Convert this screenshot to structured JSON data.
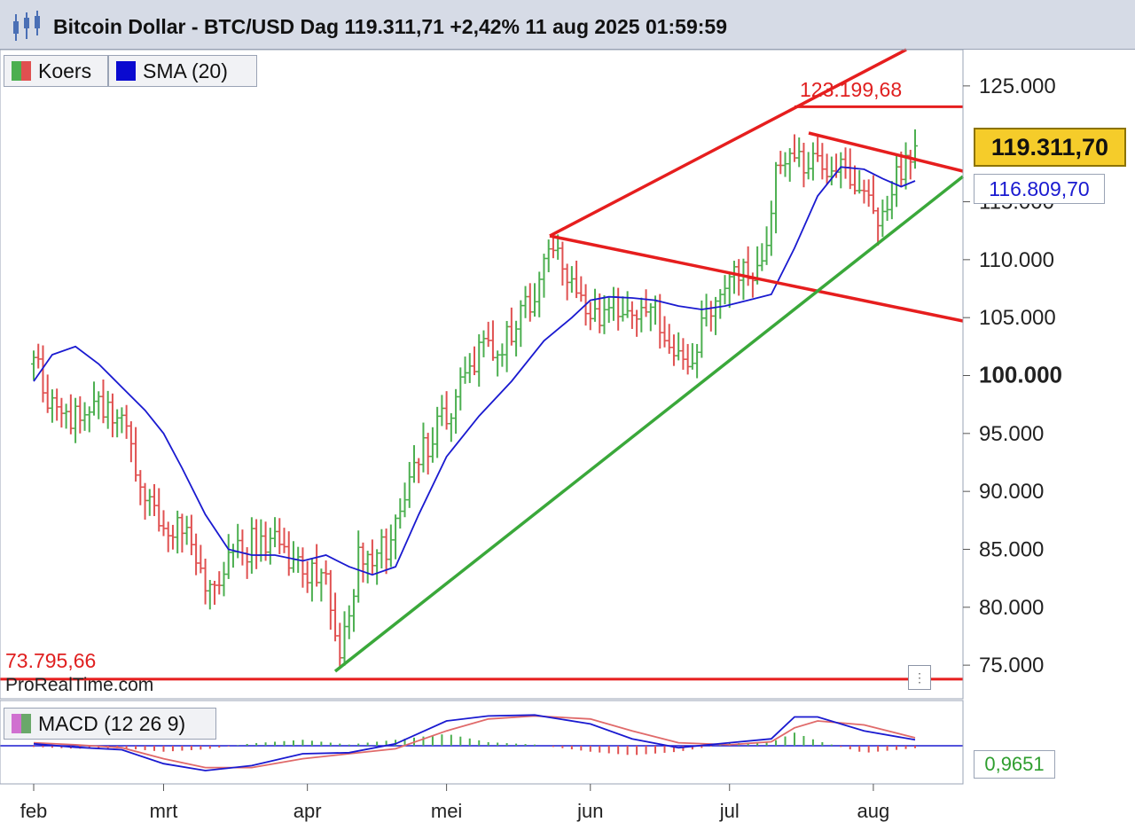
{
  "header": {
    "title": "Bitcoin Dollar - BTC/USD Dag 119.311,71 +2,42% 11 aug 2025 01:59:59"
  },
  "legend": {
    "koers_label": "Koers",
    "sma_label": "SMA (20)",
    "macd_label": "MACD (12 26 9)"
  },
  "price_panel": {
    "last_price": "119.311,70",
    "sma_value": "116.809,70",
    "high_label": "123.199,68",
    "low_label": "73.795,66",
    "watermark": "ProRealTime.com"
  },
  "macd_panel": {
    "value_label": "0,9651"
  },
  "colors": {
    "up": "#4caf50",
    "down": "#e05050",
    "sma": "#1a1ad0",
    "trend_red": "#e61e1e",
    "trend_green": "#3aa83a",
    "last_price_bg": "#f5cc2a"
  },
  "chart_data": {
    "type": "line",
    "series": [
      {
        "name": "Koers",
        "x": [
          "2025-02-01",
          "2025-02-05",
          "2025-02-10",
          "2025-02-15",
          "2025-02-20",
          "2025-02-25",
          "2025-03-01",
          "2025-03-05",
          "2025-03-10",
          "2025-03-15",
          "2025-03-20",
          "2025-03-25",
          "2025-03-31",
          "2025-04-05",
          "2025-04-08",
          "2025-04-12",
          "2025-04-18",
          "2025-04-25",
          "2025-05-01",
          "2025-05-08",
          "2025-05-15",
          "2025-05-22",
          "2025-05-25",
          "2025-06-01",
          "2025-06-05",
          "2025-06-10",
          "2025-06-15",
          "2025-06-22",
          "2025-06-28",
          "2025-07-03",
          "2025-07-08",
          "2025-07-11",
          "2025-07-14",
          "2025-07-18",
          "2025-07-24",
          "2025-07-30",
          "2025-08-02",
          "2025-08-06",
          "2025-08-10"
        ],
        "values": [
          101000,
          97500,
          96500,
          97000,
          96000,
          89000,
          86000,
          87000,
          81500,
          84000,
          85500,
          86000,
          83000,
          82000,
          76500,
          84000,
          85000,
          93000,
          96500,
          102000,
          103500,
          109000,
          111000,
          105000,
          105500,
          106000,
          105500,
          101000,
          107000,
          108500,
          109000,
          117500,
          120000,
          118000,
          118500,
          115000,
          113500,
          117500,
          119300
        ]
      },
      {
        "name": "SMA (20)",
        "x": [
          "2025-02-01",
          "2025-02-05",
          "2025-02-10",
          "2025-02-15",
          "2025-02-20",
          "2025-02-25",
          "2025-03-01",
          "2025-03-05",
          "2025-03-10",
          "2025-03-15",
          "2025-03-20",
          "2025-03-25",
          "2025-03-31",
          "2025-04-05",
          "2025-04-10",
          "2025-04-15",
          "2025-04-20",
          "2025-04-25",
          "2025-05-01",
          "2025-05-08",
          "2025-05-15",
          "2025-05-22",
          "2025-05-28",
          "2025-06-01",
          "2025-06-05",
          "2025-06-10",
          "2025-06-15",
          "2025-06-20",
          "2025-06-25",
          "2025-06-30",
          "2025-07-05",
          "2025-07-10",
          "2025-07-15",
          "2025-07-20",
          "2025-07-25",
          "2025-07-30",
          "2025-08-03",
          "2025-08-07",
          "2025-08-10"
        ],
        "values": [
          99500,
          101800,
          102500,
          101000,
          99000,
          97000,
          95000,
          92000,
          88000,
          85000,
          84500,
          84500,
          84000,
          84500,
          83500,
          82800,
          83500,
          88000,
          93000,
          96500,
          99500,
          103000,
          105000,
          106500,
          106800,
          106700,
          106500,
          106000,
          105700,
          106000,
          106500,
          107000,
          111000,
          115500,
          118000,
          117800,
          117000,
          116300,
          116800
        ]
      }
    ],
    "macd": {
      "name": "MACD (12 26 9)",
      "x": [
        "2025-02-01",
        "2025-02-10",
        "2025-02-20",
        "2025-03-01",
        "2025-03-10",
        "2025-03-20",
        "2025-03-31",
        "2025-04-10",
        "2025-04-20",
        "2025-05-01",
        "2025-05-10",
        "2025-05-20",
        "2025-06-01",
        "2025-06-10",
        "2025-06-20",
        "2025-07-01",
        "2025-07-10",
        "2025-07-15",
        "2025-07-20",
        "2025-07-30",
        "2025-08-10"
      ],
      "macd": [
        200,
        -150,
        -400,
        -1800,
        -2500,
        -2000,
        -800,
        -700,
        200,
        2500,
        3000,
        3100,
        2200,
        700,
        -200,
        300,
        700,
        2900,
        2900,
        1500,
        600
      ],
      "signal": [
        300,
        100,
        -200,
        -1300,
        -2200,
        -2200,
        -1300,
        -800,
        -300,
        1500,
        2700,
        3000,
        2700,
        1500,
        300,
        100,
        400,
        1800,
        2500,
        2100,
        800
      ],
      "last_value": "0,9651"
    },
    "annotations": [
      "123.199,68",
      "73.795,66"
    ],
    "xlabel": "",
    "ylabel": "",
    "x_ticks": [
      "feb",
      "mrt",
      "apr",
      "mei",
      "jun",
      "jul",
      "aug"
    ],
    "y_ticks": [
      "125.000",
      "115.000",
      "110.000",
      "105.000",
      "100.000",
      "95.000",
      "90.000",
      "85.000",
      "80.000",
      "75.000"
    ],
    "ylim": [
      72500,
      127500
    ],
    "legend_position": "top-left",
    "grid": false
  }
}
